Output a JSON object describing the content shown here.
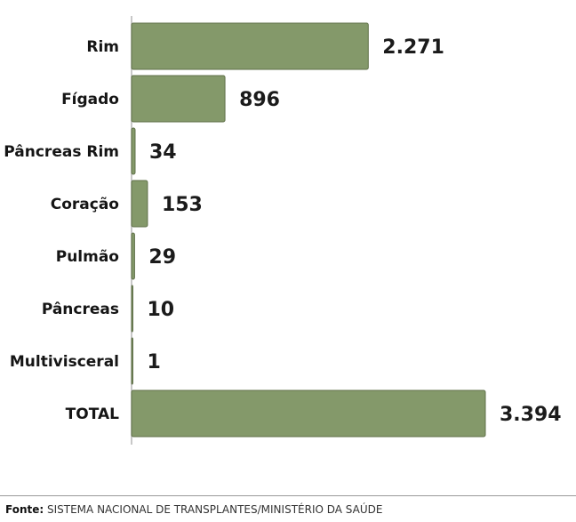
{
  "chart_data": {
    "type": "bar",
    "orientation": "horizontal",
    "categories": [
      "Rim",
      "Fígado",
      "Pâncreas Rim",
      "Coração",
      "Pulmão",
      "Pâncreas",
      "Multivisceral",
      "TOTAL"
    ],
    "values": [
      2271,
      896,
      34,
      153,
      29,
      10,
      1,
      3394
    ],
    "value_labels": [
      "2.271",
      "896",
      "34",
      "153",
      "29",
      "10",
      "1",
      "3.394"
    ],
    "title": "",
    "xlabel": "",
    "ylabel": "",
    "xlim": [
      0,
      3394
    ],
    "grid": false,
    "legend": "none",
    "bar_color": "#84996a",
    "bar_edge_color": "#5f7048",
    "axis_color": "#b5b5b5"
  },
  "footer": {
    "source_label": "Fonte:",
    "source_text": "SISTEMA NACIONAL DE TRANSPLANTES/MINISTÉRIO DA SAÚDE"
  }
}
